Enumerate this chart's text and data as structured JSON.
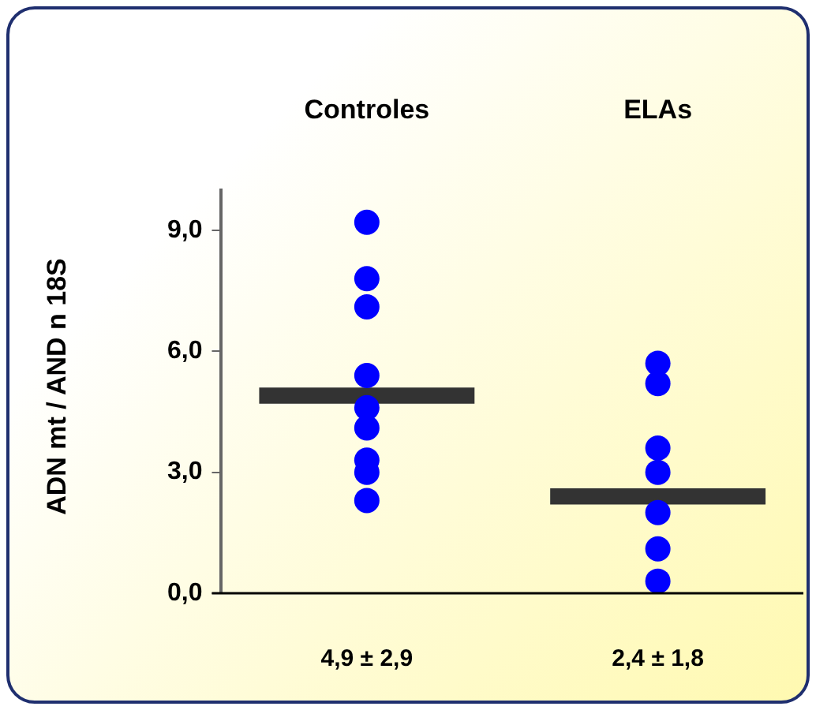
{
  "chart_data": {
    "type": "scatter",
    "ylabel": "ADN mt / AND n 18S",
    "categories": [
      "Controles",
      "ELAs"
    ],
    "series": [
      {
        "color": "#0000ff",
        "marker": "circle",
        "x": [
          "Controles",
          "Controles",
          "Controles",
          "Controles",
          "Controles",
          "Controles",
          "Controles",
          "Controles",
          "Controles",
          "ELAs",
          "ELAs",
          "ELAs",
          "ELAs",
          "ELAs",
          "ELAs",
          "ELAs",
          "ELAs",
          "ELAs"
        ],
        "values": [
          9.2,
          7.8,
          7.1,
          5.4,
          4.6,
          4.1,
          3.3,
          3.0,
          2.3,
          5.7,
          null,
          5.2,
          3.6,
          3.0,
          null,
          2.0,
          1.1,
          0.3
        ]
      },
      {
        "type": "bar",
        "color": "#333333",
        "base": [
          4.7,
          2.2
        ],
        "values": [
          0.4,
          0.4
        ]
      }
    ],
    "ylim": [
      0,
      10
    ],
    "yticks": [
      {
        "value": 0,
        "label": "0,0"
      },
      {
        "value": 3,
        "label": "3,0"
      },
      {
        "value": 6,
        "label": "6,0"
      },
      {
        "value": 9,
        "label": "9,0"
      }
    ],
    "grid": false,
    "legend": false,
    "annotations": [
      "4,9 ± 2,9",
      "2,4 ± 1,8"
    ]
  }
}
